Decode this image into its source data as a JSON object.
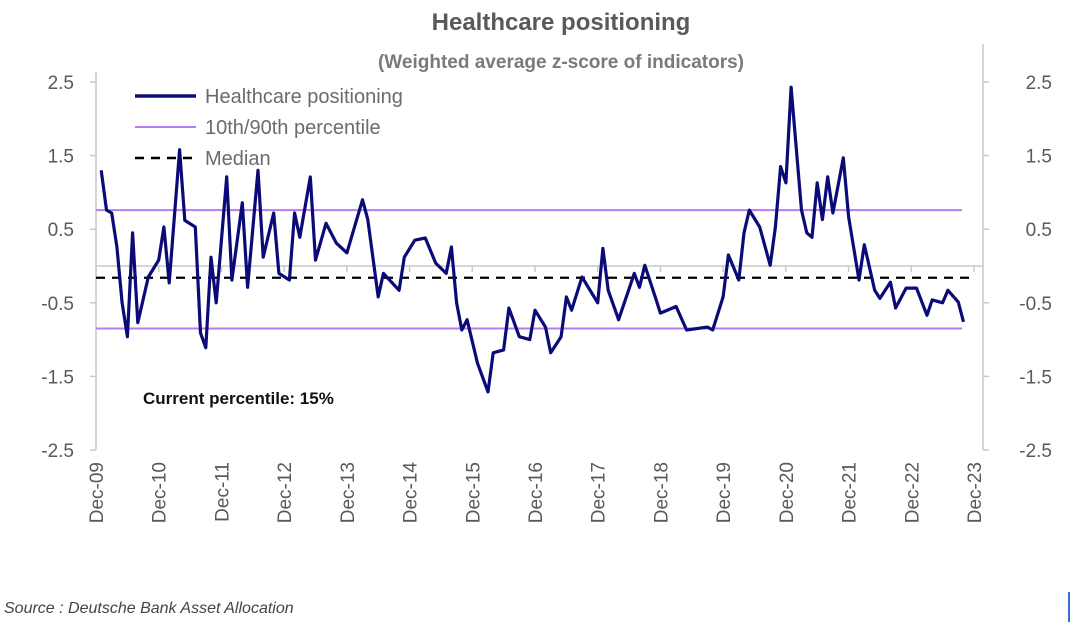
{
  "chart_data": {
    "type": "line",
    "title": "Healthcare positioning",
    "subtitle": "(Weighted average z-score of indicators)",
    "ylim": [
      -2.5,
      2.5
    ],
    "y_ticks": [
      "2.5",
      "1.5",
      "0.5",
      "-0.5",
      "-1.5",
      "-2.5"
    ],
    "y_tick_values": [
      2.5,
      1.5,
      0.5,
      -0.5,
      -1.5,
      -2.5
    ],
    "x_range": [
      "2009-12",
      "2023-12"
    ],
    "x_ticks": [
      "Dec-09",
      "Dec-10",
      "Dec-11",
      "Dec-12",
      "Dec-13",
      "Dec-14",
      "Dec-15",
      "Dec-16",
      "Dec-17",
      "Dec-18",
      "Dec-19",
      "Dec-20",
      "Dec-21",
      "Dec-22",
      "Dec-23"
    ],
    "grid": false,
    "legend_position": "top-left",
    "legend": [
      "Healthcare positioning",
      "10th/90th percentile",
      "Median"
    ],
    "colors": {
      "series": "#0b0b78",
      "percentile": "#b67cf0",
      "median": "#000000",
      "axis": "#c8c8c8"
    },
    "percentile_90": 0.76,
    "percentile_10": -0.85,
    "median": -0.16,
    "annotation": "Current percentile: 15%",
    "series": [
      {
        "name": "Healthcare positioning",
        "points": [
          [
            "2010-01",
            1.3
          ],
          [
            "2010-02",
            0.76
          ],
          [
            "2010-03",
            0.72
          ],
          [
            "2010-04",
            0.26
          ],
          [
            "2010-05",
            -0.5
          ],
          [
            "2010-06",
            -0.96
          ],
          [
            "2010-07",
            0.45
          ],
          [
            "2010-08",
            -0.77
          ],
          [
            "2010-10",
            -0.15
          ],
          [
            "2010-12",
            0.08
          ],
          [
            "2011-01",
            0.53
          ],
          [
            "2011-02",
            -0.23
          ],
          [
            "2011-04",
            1.58
          ],
          [
            "2011-05",
            0.62
          ],
          [
            "2011-07",
            0.53
          ],
          [
            "2011-08",
            -0.91
          ],
          [
            "2011-09",
            -1.11
          ],
          [
            "2011-10",
            0.12
          ],
          [
            "2011-11",
            -0.5
          ],
          [
            "2012-01",
            1.21
          ],
          [
            "2012-02",
            -0.19
          ],
          [
            "2012-04",
            0.86
          ],
          [
            "2012-05",
            -0.29
          ],
          [
            "2012-07",
            1.3
          ],
          [
            "2012-08",
            0.12
          ],
          [
            "2012-10",
            0.72
          ],
          [
            "2012-11",
            -0.1
          ],
          [
            "2013-01",
            -0.19
          ],
          [
            "2013-02",
            0.72
          ],
          [
            "2013-03",
            0.39
          ],
          [
            "2013-05",
            1.21
          ],
          [
            "2013-06",
            0.08
          ],
          [
            "2013-08",
            0.58
          ],
          [
            "2013-10",
            0.31
          ],
          [
            "2013-12",
            0.18
          ],
          [
            "2014-03",
            0.9
          ],
          [
            "2014-04",
            0.63
          ],
          [
            "2014-06",
            -0.42
          ],
          [
            "2014-07",
            -0.1
          ],
          [
            "2014-10",
            -0.33
          ],
          [
            "2014-11",
            0.12
          ],
          [
            "2015-01",
            0.35
          ],
          [
            "2015-03",
            0.38
          ],
          [
            "2015-05",
            0.04
          ],
          [
            "2015-07",
            -0.1
          ],
          [
            "2015-08",
            0.26
          ],
          [
            "2015-09",
            -0.5
          ],
          [
            "2015-10",
            -0.87
          ],
          [
            "2015-11",
            -0.73
          ],
          [
            "2016-01",
            -1.32
          ],
          [
            "2016-03",
            -1.71
          ],
          [
            "2016-04",
            -1.18
          ],
          [
            "2016-06",
            -1.14
          ],
          [
            "2016-07",
            -0.57
          ],
          [
            "2016-09",
            -0.96
          ],
          [
            "2016-11",
            -1.0
          ],
          [
            "2016-12",
            -0.6
          ],
          [
            "2017-02",
            -0.83
          ],
          [
            "2017-03",
            -1.18
          ],
          [
            "2017-05",
            -0.96
          ],
          [
            "2017-06",
            -0.42
          ],
          [
            "2017-07",
            -0.6
          ],
          [
            "2017-09",
            -0.15
          ],
          [
            "2017-12",
            -0.5
          ],
          [
            "2018-01",
            0.24
          ],
          [
            "2018-02",
            -0.33
          ],
          [
            "2018-04",
            -0.73
          ],
          [
            "2018-07",
            -0.1
          ],
          [
            "2018-08",
            -0.29
          ],
          [
            "2018-09",
            0.01
          ],
          [
            "2018-11",
            -0.42
          ],
          [
            "2018-12",
            -0.64
          ],
          [
            "2019-03",
            -0.55
          ],
          [
            "2019-05",
            -0.87
          ],
          [
            "2019-09",
            -0.83
          ],
          [
            "2019-10",
            -0.87
          ],
          [
            "2019-12",
            -0.42
          ],
          [
            "2020-01",
            0.15
          ],
          [
            "2020-03",
            -0.19
          ],
          [
            "2020-04",
            0.45
          ],
          [
            "2020-05",
            0.76
          ],
          [
            "2020-07",
            0.53
          ],
          [
            "2020-09",
            0.01
          ],
          [
            "2020-10",
            0.53
          ],
          [
            "2020-11",
            1.35
          ],
          [
            "2020-12",
            1.13
          ],
          [
            "2021-01",
            2.43
          ],
          [
            "2021-03",
            0.76
          ],
          [
            "2021-04",
            0.45
          ],
          [
            "2021-05",
            0.39
          ],
          [
            "2021-06",
            1.13
          ],
          [
            "2021-07",
            0.63
          ],
          [
            "2021-08",
            1.21
          ],
          [
            "2021-09",
            0.72
          ],
          [
            "2021-11",
            1.47
          ],
          [
            "2021-12",
            0.67
          ],
          [
            "2022-02",
            -0.19
          ],
          [
            "2022-03",
            0.29
          ],
          [
            "2022-05",
            -0.33
          ],
          [
            "2022-06",
            -0.44
          ],
          [
            "2022-08",
            -0.22
          ],
          [
            "2022-09",
            -0.57
          ],
          [
            "2022-11",
            -0.3
          ],
          [
            "2023-01",
            -0.3
          ],
          [
            "2023-03",
            -0.67
          ],
          [
            "2023-04",
            -0.46
          ],
          [
            "2023-06",
            -0.5
          ],
          [
            "2023-07",
            -0.33
          ],
          [
            "2023-09",
            -0.49
          ],
          [
            "2023-10",
            -0.76
          ]
        ]
      }
    ]
  },
  "source": "Source : Deutsche Bank Asset Allocation"
}
